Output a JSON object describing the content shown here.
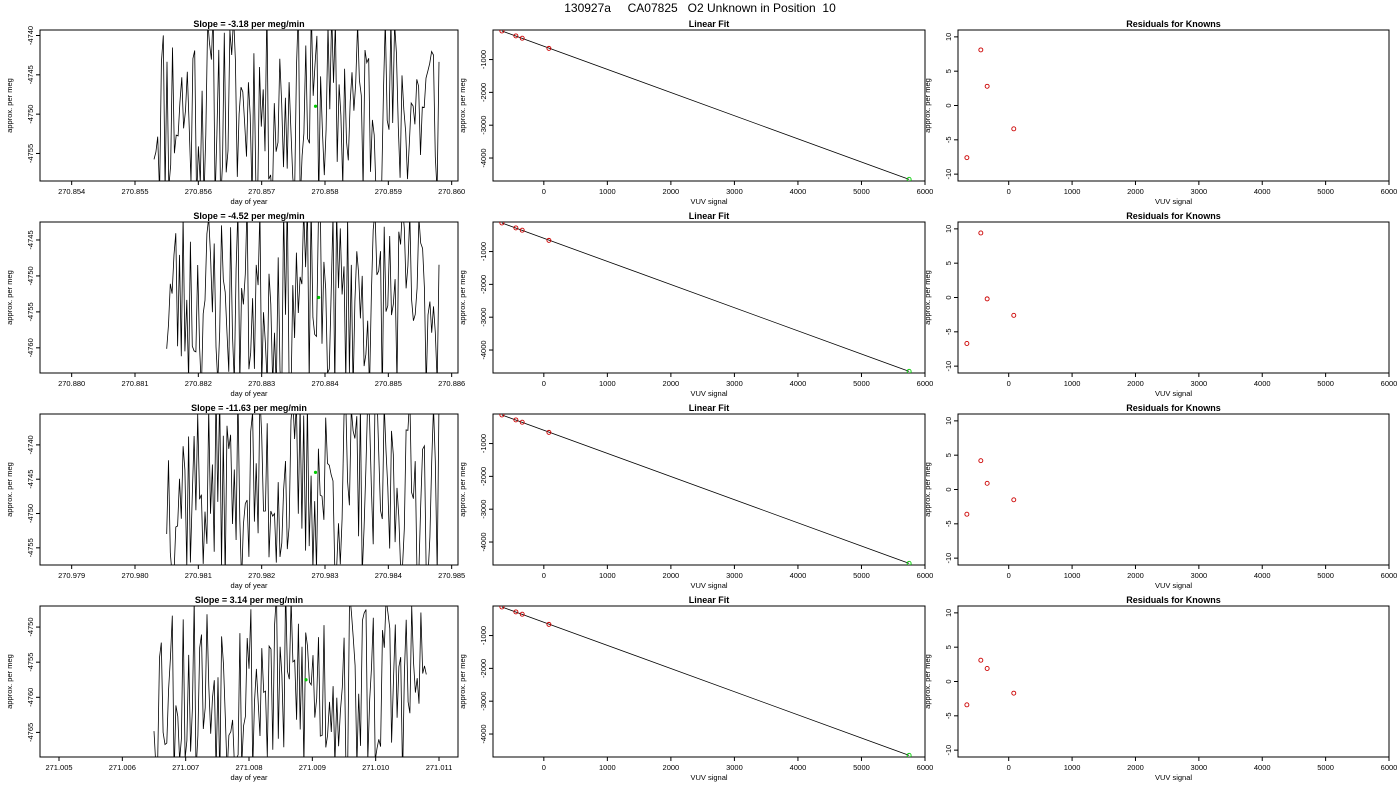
{
  "figure": {
    "title": "130927a     CA07825   O2 Unknown in Position  10"
  },
  "chart_data": [
    {
      "type": "line",
      "panel": "timeseries-1",
      "title": "Slope =  -3.18  per meg/min",
      "xlabel": "day of year",
      "ylabel": "approx. per meg",
      "xlim": [
        270.8535,
        270.8601
      ],
      "ylim": [
        -4758.5,
        -4739.3
      ],
      "xticks": [
        "270.854",
        "270.855",
        "270.856",
        "270.857",
        "270.858",
        "270.859",
        "270.860"
      ],
      "yticks": [
        "-4740",
        "-4745",
        "-4750",
        "-4755"
      ],
      "x_start": 270.8553,
      "x_end": 270.8598,
      "samples": 155,
      "center": -4749.0,
      "amplitude": 13.0,
      "seed": 11,
      "green_point": {
        "x": 270.85785,
        "y": -4749.0
      }
    },
    {
      "type": "scatter",
      "panel": "fit-1",
      "title": "Linear Fit",
      "xlabel": "VUV signal",
      "ylabel": "approx. per meg",
      "xlim": [
        -800,
        6000
      ],
      "ylim": [
        -4700,
        -100
      ],
      "xticks": [
        "0",
        "1000",
        "2000",
        "3000",
        "4000",
        "5000",
        "6000"
      ],
      "yticks": [
        "-1000",
        "-2000",
        "-3000",
        "-4000"
      ],
      "knowns": [
        {
          "x": -660,
          "y": -130
        },
        {
          "x": -440,
          "y": -280
        },
        {
          "x": -340,
          "y": -350
        },
        {
          "x": 80,
          "y": -660
        }
      ],
      "unknown": {
        "x": 5750,
        "y": -4650
      },
      "fit_line": {
        "x": [
          -660,
          5750
        ],
        "y": [
          -130,
          -4650
        ]
      }
    },
    {
      "type": "scatter",
      "panel": "residuals-1",
      "title": "Residuals for Knowns",
      "xlabel": "VUV signal",
      "ylabel": "approx. per meg",
      "xlim": [
        -800,
        6000
      ],
      "ylim": [
        -11,
        11
      ],
      "xticks": [
        "0",
        "1000",
        "2000",
        "3000",
        "4000",
        "5000",
        "6000"
      ],
      "yticks": [
        "10",
        "5",
        "0",
        "-5",
        "-10"
      ],
      "points": [
        {
          "x": -660,
          "y": -7.6
        },
        {
          "x": -440,
          "y": 8.1
        },
        {
          "x": -340,
          "y": 2.8
        },
        {
          "x": 80,
          "y": -3.4
        }
      ]
    },
    {
      "type": "line",
      "panel": "timeseries-2",
      "title": "Slope =  -4.52  per meg/min",
      "xlabel": "day of year",
      "ylabel": "approx. per meg",
      "xlim": [
        270.8795,
        270.8861
      ],
      "ylim": [
        -4763.5,
        -4742.5
      ],
      "xticks": [
        "270.880",
        "270.881",
        "270.882",
        "270.883",
        "270.884",
        "270.885",
        "270.886"
      ],
      "yticks": [
        "-4745",
        "-4750",
        "-4755",
        "-4760"
      ],
      "x_start": 270.8815,
      "x_end": 270.8858,
      "samples": 150,
      "center": -4753.0,
      "amplitude": 14.0,
      "seed": 23,
      "green_point": {
        "x": 270.8839,
        "y": -4753.0
      }
    },
    {
      "type": "scatter",
      "panel": "fit-2",
      "title": "Linear Fit",
      "xlabel": "VUV signal",
      "ylabel": "approx. per meg",
      "xlim": [
        -800,
        6000
      ],
      "ylim": [
        -4700,
        -100
      ],
      "xticks": [
        "0",
        "1000",
        "2000",
        "3000",
        "4000",
        "5000",
        "6000"
      ],
      "yticks": [
        "-1000",
        "-2000",
        "-3000",
        "-4000"
      ],
      "knowns": [
        {
          "x": -660,
          "y": -130
        },
        {
          "x": -440,
          "y": -280
        },
        {
          "x": -340,
          "y": -350
        },
        {
          "x": 80,
          "y": -660
        }
      ],
      "unknown": {
        "x": 5750,
        "y": -4650
      },
      "fit_line": {
        "x": [
          -660,
          5750
        ],
        "y": [
          -130,
          -4650
        ]
      }
    },
    {
      "type": "scatter",
      "panel": "residuals-2",
      "title": "Residuals for Knowns",
      "xlabel": "VUV signal",
      "ylabel": "approx. per meg",
      "xlim": [
        -800,
        6000
      ],
      "ylim": [
        -11,
        11
      ],
      "xticks": [
        "0",
        "1000",
        "2000",
        "3000",
        "4000",
        "5000",
        "6000"
      ],
      "yticks": [
        "10",
        "5",
        "0",
        "-5",
        "-10"
      ],
      "points": [
        {
          "x": -660,
          "y": -6.7
        },
        {
          "x": -440,
          "y": 9.4
        },
        {
          "x": -340,
          "y": -0.2
        },
        {
          "x": 80,
          "y": -2.6
        }
      ]
    },
    {
      "type": "line",
      "panel": "timeseries-3",
      "title": "Slope =  -11.63  per meg/min",
      "xlabel": "day of year",
      "ylabel": "approx. per meg",
      "xlim": [
        270.9785,
        270.9851
      ],
      "ylim": [
        -4757.5,
        -4735.5
      ],
      "xticks": [
        "270.979",
        "270.980",
        "270.981",
        "270.982",
        "270.983",
        "270.984",
        "270.985"
      ],
      "yticks": [
        "-4740",
        "-4745",
        "-4750",
        "-4755"
      ],
      "x_start": 270.9805,
      "x_end": 270.9848,
      "samples": 150,
      "center": -4746.0,
      "amplitude": 14.0,
      "seed": 37,
      "green_point": {
        "x": 270.98285,
        "y": -4744.0
      }
    },
    {
      "type": "scatter",
      "panel": "fit-3",
      "title": "Linear Fit",
      "xlabel": "VUV signal",
      "ylabel": "approx. per meg",
      "xlim": [
        -800,
        6000
      ],
      "ylim": [
        -4700,
        -100
      ],
      "xticks": [
        "0",
        "1000",
        "2000",
        "3000",
        "4000",
        "5000",
        "6000"
      ],
      "yticks": [
        "-1000",
        "-2000",
        "-3000",
        "-4000"
      ],
      "knowns": [
        {
          "x": -660,
          "y": -130
        },
        {
          "x": -440,
          "y": -280
        },
        {
          "x": -340,
          "y": -350
        },
        {
          "x": 80,
          "y": -660
        }
      ],
      "unknown": {
        "x": 5750,
        "y": -4650
      },
      "fit_line": {
        "x": [
          -660,
          5750
        ],
        "y": [
          -130,
          -4650
        ]
      }
    },
    {
      "type": "scatter",
      "panel": "residuals-3",
      "title": "Residuals for Knowns",
      "xlabel": "VUV signal",
      "ylabel": "approx. per meg",
      "xlim": [
        -800,
        6000
      ],
      "ylim": [
        -11,
        11
      ],
      "xticks": [
        "0",
        "1000",
        "2000",
        "3000",
        "4000",
        "5000",
        "6000"
      ],
      "yticks": [
        "10",
        "5",
        "0",
        "-5",
        "-10"
      ],
      "points": [
        {
          "x": -660,
          "y": -3.6
        },
        {
          "x": -440,
          "y": 4.2
        },
        {
          "x": -340,
          "y": 0.9
        },
        {
          "x": 80,
          "y": -1.5
        }
      ]
    },
    {
      "type": "line",
      "panel": "timeseries-4",
      "title": "Slope =  3.14  per meg/min",
      "xlabel": "day of year",
      "ylabel": "approx. per meg",
      "xlim": [
        271.0047,
        271.0113
      ],
      "ylim": [
        -4768.5,
        -4747.0
      ],
      "xticks": [
        "271.005",
        "271.006",
        "271.007",
        "271.008",
        "271.009",
        "271.010",
        "271.011"
      ],
      "yticks": [
        "-4750",
        "-4755",
        "-4760",
        "-4765"
      ],
      "x_start": 271.0065,
      "x_end": 271.0108,
      "samples": 150,
      "center": -4758.0,
      "amplitude": 14.0,
      "seed": 53,
      "green_point": {
        "x": 271.0089,
        "y": -4757.5
      }
    },
    {
      "type": "scatter",
      "panel": "fit-4",
      "title": "Linear Fit",
      "xlabel": "VUV signal",
      "ylabel": "approx. per meg",
      "xlim": [
        -800,
        6000
      ],
      "ylim": [
        -4700,
        -100
      ],
      "xticks": [
        "0",
        "1000",
        "2000",
        "3000",
        "4000",
        "5000",
        "6000"
      ],
      "yticks": [
        "-1000",
        "-2000",
        "-3000",
        "-4000"
      ],
      "knowns": [
        {
          "x": -660,
          "y": -130
        },
        {
          "x": -440,
          "y": -280
        },
        {
          "x": -340,
          "y": -350
        },
        {
          "x": 80,
          "y": -660
        }
      ],
      "unknown": {
        "x": 5750,
        "y": -4650
      },
      "fit_line": {
        "x": [
          -660,
          5750
        ],
        "y": [
          -130,
          -4650
        ]
      }
    },
    {
      "type": "scatter",
      "panel": "residuals-4",
      "title": "Residuals for Knowns",
      "xlabel": "VUV signal",
      "ylabel": "approx. per meg",
      "xlim": [
        -800,
        6000
      ],
      "ylim": [
        -11,
        11
      ],
      "xticks": [
        "0",
        "1000",
        "2000",
        "3000",
        "4000",
        "5000",
        "6000"
      ],
      "yticks": [
        "10",
        "5",
        "0",
        "-5",
        "-10"
      ],
      "points": [
        {
          "x": -660,
          "y": -3.4
        },
        {
          "x": -440,
          "y": 3.1
        },
        {
          "x": -340,
          "y": 1.9
        },
        {
          "x": 80,
          "y": -1.7
        }
      ]
    }
  ],
  "colors": {
    "axis": "#000000",
    "series_line": "#000000",
    "known_point": "#cc0000",
    "unknown_point": "#00cc00"
  }
}
